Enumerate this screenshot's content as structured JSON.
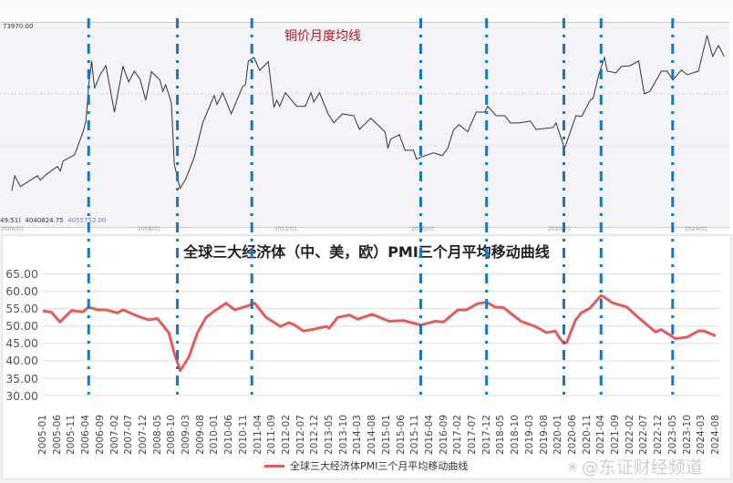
{
  "top_chart": {
    "title": "铜价月度均线",
    "max_label": "73970.00",
    "status_prefix": "49:51)",
    "status_value1": "4040824.75",
    "status_value2": "4055752.00",
    "x_ticks": [
      "2004/01",
      "2008/01",
      "2012/01",
      "2016/01",
      "2020/01",
      "2024/01"
    ]
  },
  "bottom_chart": {
    "title": "全球三大经济体（中、美，欧）PMI三个月平均移动曲线",
    "y_ticks": [
      "65.00",
      "60.00",
      "55.00",
      "50.00",
      "45.00",
      "40.00",
      "35.00",
      "30.00"
    ],
    "x_ticks": [
      "2005-01",
      "2005-06",
      "2005-11",
      "2006-04",
      "2006-09",
      "2007-02",
      "2007-07",
      "2007-12",
      "2008-05",
      "2008-10",
      "2009-03",
      "2009-08",
      "2010-01",
      "2010-06",
      "2010-11",
      "2011-04",
      "2011-09",
      "2012-02",
      "2012-07",
      "2012-12",
      "2013-05",
      "2013-10",
      "2014-03",
      "2014-08",
      "2015-01",
      "2015-06",
      "2015-11",
      "2016-04",
      "2016-09",
      "2017-02",
      "2017-07",
      "2017-12",
      "2018-05",
      "2018-10",
      "2019-03",
      "2019-08",
      "2020-01",
      "2020-06",
      "2020-11",
      "2021-04",
      "2021-09",
      "2022-02",
      "2022-07",
      "2022-12",
      "2023-05",
      "2023-10",
      "2024-03",
      "2024-08"
    ],
    "legend": "全球三大经济体PMI三个月平均移动曲线"
  },
  "watermark": "@东证财经频道",
  "colors": {
    "copper_line": "#333333",
    "pmi_line": "#e55a5a",
    "reference_lines": "#1a75c4",
    "top_title": "#b0182a"
  },
  "chart_data": [
    {
      "type": "line",
      "title": "铜价月度均线",
      "x_ticks": [
        "2004/01",
        "2008/01",
        "2012/01",
        "2016/01",
        "2020/01",
        "2024/01"
      ],
      "ylim": [
        20000,
        73970
      ],
      "grid": "dotted horizontal",
      "points": [
        [
          "2004-01",
          28000
        ],
        [
          "2004-02",
          32200
        ],
        [
          "2004-04",
          29200
        ],
        [
          "2004-10",
          32200
        ],
        [
          "2004-11",
          31000
        ],
        [
          "2005-01",
          32500
        ],
        [
          "2005-05",
          34800
        ],
        [
          "2005-06",
          33500
        ],
        [
          "2005-07",
          36300
        ],
        [
          "2005-11",
          38000
        ],
        [
          "2006-02",
          44400
        ],
        [
          "2006-03",
          47400
        ],
        [
          "2006-04",
          57500
        ],
        [
          "2006-05",
          64100
        ],
        [
          "2006-06",
          56500
        ],
        [
          "2006-08",
          60300
        ],
        [
          "2006-10",
          62800
        ],
        [
          "2007-01",
          49900
        ],
        [
          "2007-04",
          62600
        ],
        [
          "2007-06",
          58300
        ],
        [
          "2007-08",
          61300
        ],
        [
          "2007-10",
          59000
        ],
        [
          "2007-12",
          53200
        ],
        [
          "2008-02",
          61100
        ],
        [
          "2008-05",
          58800
        ],
        [
          "2008-06",
          55700
        ],
        [
          "2008-07",
          57500
        ],
        [
          "2008-09",
          52500
        ],
        [
          "2008-10",
          35500
        ],
        [
          "2008-12",
          28700
        ],
        [
          "2009-02",
          31200
        ],
        [
          "2009-05",
          37300
        ],
        [
          "2009-08",
          46900
        ],
        [
          "2009-12",
          54500
        ],
        [
          "2010-01",
          52000
        ],
        [
          "2010-03",
          55300
        ],
        [
          "2010-06",
          49400
        ],
        [
          "2010-10",
          57000
        ],
        [
          "2010-11",
          57500
        ],
        [
          "2010-12",
          64100
        ],
        [
          "2011-02",
          65100
        ],
        [
          "2011-04",
          61500
        ],
        [
          "2011-07",
          63900
        ],
        [
          "2011-09",
          51200
        ],
        [
          "2011-10",
          53200
        ],
        [
          "2011-11",
          51500
        ],
        [
          "2012-01",
          55300
        ],
        [
          "2012-05",
          51500
        ],
        [
          "2012-08",
          51500
        ],
        [
          "2012-10",
          55300
        ],
        [
          "2012-11",
          52700
        ],
        [
          "2013-01",
          55300
        ],
        [
          "2013-04",
          49400
        ],
        [
          "2013-06",
          46900
        ],
        [
          "2013-09",
          49400
        ],
        [
          "2014-01",
          48900
        ],
        [
          "2014-03",
          45100
        ],
        [
          "2014-07",
          48200
        ],
        [
          "2014-12",
          44400
        ],
        [
          "2015-01",
          39800
        ],
        [
          "2015-02",
          42400
        ],
        [
          "2015-05",
          43600
        ],
        [
          "2015-07",
          39300
        ],
        [
          "2015-10",
          39300
        ],
        [
          "2015-11",
          36800
        ],
        [
          "2016-01",
          37500
        ],
        [
          "2016-05",
          38600
        ],
        [
          "2016-08",
          37800
        ],
        [
          "2016-10",
          39800
        ],
        [
          "2016-12",
          44900
        ],
        [
          "2017-02",
          46400
        ],
        [
          "2017-05",
          44400
        ],
        [
          "2017-08",
          49900
        ],
        [
          "2017-11",
          49900
        ],
        [
          "2017-12",
          51500
        ],
        [
          "2018-03",
          48900
        ],
        [
          "2018-06",
          48900
        ],
        [
          "2018-08",
          46900
        ],
        [
          "2018-11",
          46900
        ],
        [
          "2019-03",
          47400
        ],
        [
          "2019-05",
          45100
        ],
        [
          "2019-11",
          45600
        ],
        [
          "2019-12",
          46900
        ],
        [
          "2020-03",
          39800
        ],
        [
          "2020-07",
          48900
        ],
        [
          "2020-09",
          48700
        ],
        [
          "2020-12",
          53200
        ],
        [
          "2021-01",
          53700
        ],
        [
          "2021-03",
          60300
        ],
        [
          "2021-05",
          65100
        ],
        [
          "2021-06",
          61300
        ],
        [
          "2021-09",
          60800
        ],
        [
          "2021-11",
          62600
        ],
        [
          "2022-02",
          62800
        ],
        [
          "2022-05",
          64100
        ],
        [
          "2022-07",
          55000
        ],
        [
          "2022-09",
          55700
        ],
        [
          "2023-01",
          61300
        ],
        [
          "2023-03",
          61300
        ],
        [
          "2023-05",
          58800
        ],
        [
          "2023-08",
          61600
        ],
        [
          "2023-10",
          60300
        ],
        [
          "2024-02",
          61300
        ],
        [
          "2024-05",
          71200
        ],
        [
          "2024-07",
          65400
        ],
        [
          "2024-09",
          68400
        ],
        [
          "2024-11",
          65400
        ]
      ]
    },
    {
      "type": "line",
      "title": "全球三大经济体（中、美，欧）PMI三个月平均移动曲线",
      "ylim": [
        30,
        65
      ],
      "grid": true,
      "legend": "bottom",
      "series": [
        {
          "name": "全球三大经济体PMI三个月平均移动曲线",
          "points": [
            [
              "2005-01",
              54.4
            ],
            [
              "2005-04",
              54.0
            ],
            [
              "2005-07",
              51.2
            ],
            [
              "2005-11",
              54.5
            ],
            [
              "2006-03",
              54.1
            ],
            [
              "2006-05",
              55.5
            ],
            [
              "2006-08",
              54.7
            ],
            [
              "2006-11",
              54.7
            ],
            [
              "2007-03",
              53.8
            ],
            [
              "2007-05",
              54.7
            ],
            [
              "2007-10",
              52.9
            ],
            [
              "2008-02",
              51.8
            ],
            [
              "2008-05",
              52.2
            ],
            [
              "2008-09",
              48.1
            ],
            [
              "2008-11",
              42.0
            ],
            [
              "2009-01",
              37.2
            ],
            [
              "2009-04",
              41.1
            ],
            [
              "2009-07",
              48.1
            ],
            [
              "2009-10",
              52.5
            ],
            [
              "2010-01",
              54.4
            ],
            [
              "2010-05",
              56.6
            ],
            [
              "2010-08",
              54.7
            ],
            [
              "2010-12",
              55.7
            ],
            [
              "2011-03",
              56.6
            ],
            [
              "2011-07",
              52.5
            ],
            [
              "2011-12",
              49.9
            ],
            [
              "2012-03",
              51.0
            ],
            [
              "2012-05",
              50.3
            ],
            [
              "2012-08",
              48.6
            ],
            [
              "2012-11",
              49.0
            ],
            [
              "2013-04",
              49.9
            ],
            [
              "2013-05",
              49.4
            ],
            [
              "2013-08",
              52.5
            ],
            [
              "2013-12",
              53.2
            ],
            [
              "2014-03",
              52.0
            ],
            [
              "2014-08",
              53.4
            ],
            [
              "2015-02",
              51.4
            ],
            [
              "2015-07",
              51.6
            ],
            [
              "2016-01",
              50.3
            ],
            [
              "2016-06",
              51.4
            ],
            [
              "2016-09",
              51.2
            ],
            [
              "2017-02",
              54.7
            ],
            [
              "2017-05",
              54.7
            ],
            [
              "2017-09",
              56.5
            ],
            [
              "2017-12",
              56.9
            ],
            [
              "2018-03",
              55.5
            ],
            [
              "2018-06",
              55.3
            ],
            [
              "2018-12",
              51.4
            ],
            [
              "2019-05",
              49.9
            ],
            [
              "2019-09",
              48.1
            ],
            [
              "2019-12",
              48.6
            ],
            [
              "2020-01",
              47.2
            ],
            [
              "2020-03",
              45.0
            ],
            [
              "2020-04",
              45.3
            ],
            [
              "2020-07",
              51.6
            ],
            [
              "2020-09",
              53.8
            ],
            [
              "2020-12",
              55.1
            ],
            [
              "2021-04",
              58.8
            ],
            [
              "2021-05",
              58.4
            ],
            [
              "2021-08",
              56.7
            ],
            [
              "2022-01",
              55.5
            ],
            [
              "2022-05",
              52.5
            ],
            [
              "2022-11",
              48.3
            ],
            [
              "2023-01",
              49.0
            ],
            [
              "2023-06",
              46.4
            ],
            [
              "2023-10",
              46.8
            ],
            [
              "2024-02",
              48.6
            ],
            [
              "2024-04",
              48.6
            ],
            [
              "2024-08",
              47.2
            ]
          ]
        }
      ]
    }
  ],
  "reference_lines": [
    "2006-05",
    "2008-12",
    "2011-02",
    "2016-01",
    "2017-12",
    "2020-03",
    "2021-04",
    "2023-05"
  ]
}
